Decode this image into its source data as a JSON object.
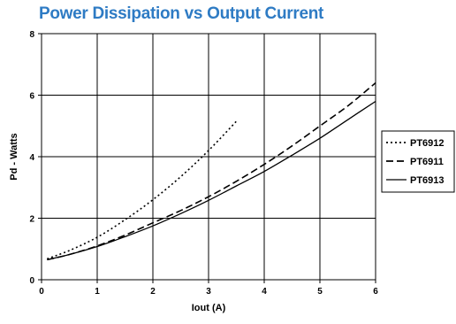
{
  "chart_data": {
    "type": "line",
    "title": "Power Dissipation vs Output Current",
    "xlabel": "Iout (A)",
    "ylabel": "Pd - Watts",
    "xlim": [
      0,
      6
    ],
    "ylim": [
      0,
      8
    ],
    "xticks": [
      "0",
      "1",
      "2",
      "3",
      "4",
      "5",
      "6"
    ],
    "yticks": [
      "0",
      "2",
      "4",
      "6",
      "8"
    ],
    "grid": true,
    "legend_position": "right",
    "title_color": "#2e7bc4",
    "series": [
      {
        "name": "PT6912",
        "style": "dotted",
        "x": [
          0.1,
          0.5,
          1.0,
          1.5,
          2.0,
          2.5,
          3.0,
          3.5
        ],
        "y": [
          0.68,
          0.95,
          1.38,
          1.95,
          2.6,
          3.35,
          4.2,
          5.15
        ]
      },
      {
        "name": "PT6911",
        "style": "dashed",
        "x": [
          0.1,
          0.5,
          1.0,
          1.5,
          2.0,
          2.5,
          3.0,
          3.5,
          4.0,
          4.5,
          5.0,
          5.5,
          6.0
        ],
        "y": [
          0.65,
          0.82,
          1.1,
          1.45,
          1.85,
          2.25,
          2.7,
          3.2,
          3.75,
          4.35,
          5.0,
          5.65,
          6.4
        ]
      },
      {
        "name": "PT6913",
        "style": "solid",
        "x": [
          0.1,
          0.5,
          1.0,
          1.5,
          2.0,
          2.5,
          3.0,
          3.5,
          4.0,
          4.5,
          5.0,
          5.5,
          6.0
        ],
        "y": [
          0.65,
          0.82,
          1.08,
          1.4,
          1.75,
          2.15,
          2.58,
          3.05,
          3.52,
          4.05,
          4.6,
          5.2,
          5.8
        ]
      }
    ]
  }
}
